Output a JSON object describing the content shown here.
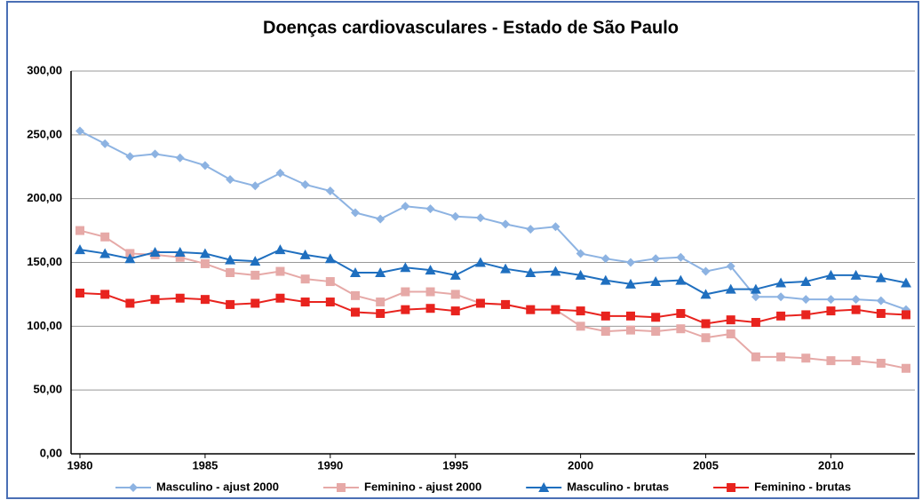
{
  "chart_data": {
    "type": "line",
    "title": "Doenças cardiovasculares - Estado de São Paulo",
    "x": [
      1980,
      1981,
      1982,
      1983,
      1984,
      1985,
      1986,
      1987,
      1988,
      1989,
      1990,
      1991,
      1992,
      1993,
      1994,
      1995,
      1996,
      1997,
      1998,
      1999,
      2000,
      2001,
      2002,
      2003,
      2004,
      2005,
      2006,
      2007,
      2008,
      2009,
      2010,
      2011,
      2012,
      2013
    ],
    "xlim": [
      1980,
      2013
    ],
    "xticks": [
      1980,
      1985,
      1990,
      1995,
      2000,
      2005,
      2010
    ],
    "ylim": [
      0,
      300
    ],
    "yticks": [
      {
        "value": 0,
        "label": "0,00"
      },
      {
        "value": 50,
        "label": "50,00"
      },
      {
        "value": 100,
        "label": "100,00"
      },
      {
        "value": 150,
        "label": "150,00"
      },
      {
        "value": 200,
        "label": "200,00"
      },
      {
        "value": 250,
        "label": "250,00"
      },
      {
        "value": 300,
        "label": "300,00"
      }
    ],
    "grid": true,
    "legend": "bottom",
    "series": [
      {
        "name": "Masculino - ajust 2000",
        "color": "#8db3e2",
        "marker": "diamond",
        "values": [
          253,
          243,
          233,
          235,
          232,
          226,
          215,
          210,
          220,
          211,
          206,
          189,
          184,
          194,
          192,
          186,
          185,
          180,
          176,
          178,
          157,
          153,
          150,
          153,
          154,
          143,
          147,
          123,
          123,
          121,
          121,
          121,
          120,
          113
        ]
      },
      {
        "name": "Feminino - ajust 2000",
        "color": "#e6a9a7",
        "marker": "square",
        "values": [
          175,
          170,
          157,
          156,
          154,
          149,
          142,
          140,
          143,
          137,
          135,
          124,
          119,
          127,
          127,
          125,
          118,
          117,
          113,
          113,
          100,
          96,
          97,
          96,
          98,
          91,
          94,
          76,
          76,
          75,
          73,
          73,
          71,
          67
        ]
      },
      {
        "name": "Masculino - brutas",
        "color": "#1f6fbf",
        "marker": "triangle",
        "values": [
          160,
          157,
          153,
          158,
          158,
          157,
          152,
          151,
          160,
          156,
          153,
          142,
          142,
          146,
          144,
          140,
          150,
          145,
          142,
          143,
          140,
          136,
          133,
          135,
          136,
          125,
          129,
          129,
          134,
          135,
          140,
          140,
          138,
          134
        ]
      },
      {
        "name": "Feminino - brutas",
        "color": "#e8231e",
        "marker": "square",
        "values": [
          126,
          125,
          118,
          121,
          122,
          121,
          117,
          118,
          122,
          119,
          119,
          111,
          110,
          113,
          114,
          112,
          118,
          117,
          113,
          113,
          112,
          108,
          108,
          107,
          110,
          102,
          105,
          103,
          108,
          109,
          112,
          113,
          110,
          109
        ]
      }
    ]
  }
}
